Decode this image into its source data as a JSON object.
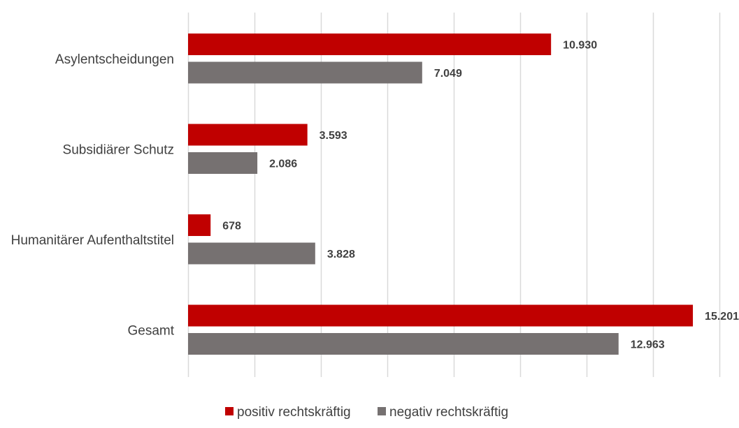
{
  "chart_data": {
    "type": "bar",
    "orientation": "horizontal",
    "categories": [
      "Asylentscheidungen",
      "Subsidiärer Schutz",
      "Humanitärer Aufenthaltstitel",
      "Gesamt"
    ],
    "series": [
      {
        "name": "positiv rechtskräftig",
        "color": "#c00000",
        "values": [
          10930,
          3593,
          678,
          15201
        ],
        "labels": [
          "10.930",
          "3.593",
          "678",
          "15.201"
        ]
      },
      {
        "name": "negativ rechtskräftig",
        "color": "#767171",
        "values": [
          7049,
          2086,
          3828,
          12963
        ],
        "labels": [
          "7.049",
          "2.086",
          "3.828",
          "12.963"
        ]
      }
    ],
    "xlim": [
      0,
      16000
    ],
    "x_grid_step": 2000,
    "grid": true,
    "x_tick_labels_shown": false,
    "legend_position": "bottom"
  }
}
